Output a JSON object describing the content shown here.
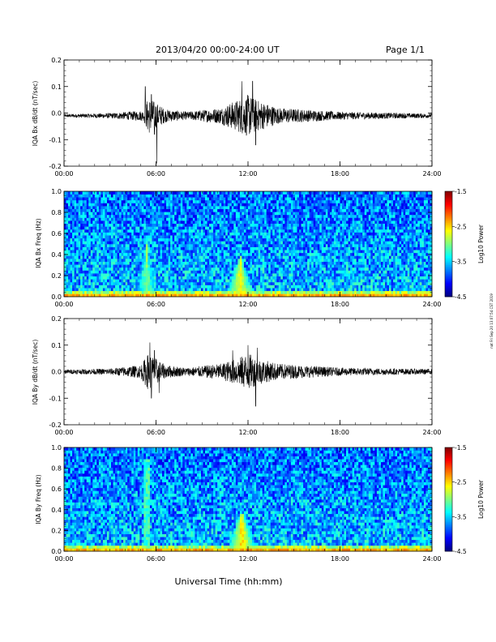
{
  "header": {
    "date_range": "2013/04/20  00:00-24:00 UT",
    "page": "Page 1/1"
  },
  "side_note": "nat Fri Sep 20 13:07:54 CST 2019",
  "x_axis_title": "Universal Time (hh:mm)",
  "x_ticks": [
    "00:00",
    "06:00",
    "12:00",
    "18:00",
    "24:00"
  ],
  "chart_data": [
    {
      "type": "line",
      "ylabel": "IQA Bx dB/dt (nT/sec)",
      "x_range_hours": [
        0,
        24
      ],
      "ylim": [
        -0.2,
        0.2
      ],
      "y_ticks": [
        "0.2",
        "0.1",
        "0.0",
        "-0.1",
        "-0.2"
      ],
      "baseline": -0.01,
      "noise_envelope": [
        {
          "t": 0,
          "amp": 0.006
        },
        {
          "t": 3,
          "amp": 0.01
        },
        {
          "t": 5.2,
          "amp": 0.02
        },
        {
          "t": 5.5,
          "amp": 0.07
        },
        {
          "t": 6.0,
          "amp": 0.05
        },
        {
          "t": 6.6,
          "amp": 0.025
        },
        {
          "t": 8,
          "amp": 0.015
        },
        {
          "t": 10.2,
          "amp": 0.03
        },
        {
          "t": 11.3,
          "amp": 0.06
        },
        {
          "t": 12.0,
          "amp": 0.08
        },
        {
          "t": 12.6,
          "amp": 0.06
        },
        {
          "t": 14,
          "amp": 0.03
        },
        {
          "t": 18,
          "amp": 0.015
        },
        {
          "t": 24,
          "amp": 0.008
        }
      ],
      "peaks": [
        {
          "t": 5.3,
          "value": 0.1
        },
        {
          "t": 5.7,
          "value": 0.07
        },
        {
          "t": 5.9,
          "value": -0.08
        },
        {
          "t": 6.05,
          "value": -0.19
        },
        {
          "t": 11.6,
          "value": 0.12
        },
        {
          "t": 12.3,
          "value": 0.12
        },
        {
          "t": 12.5,
          "value": -0.12
        }
      ]
    },
    {
      "type": "heatmap",
      "ylabel": "IQA Bx Freq (Hz)",
      "x_range_hours": [
        0,
        24
      ],
      "ylim": [
        0.0,
        1.0
      ],
      "y_ticks": [
        "1.0",
        "0.8",
        "0.6",
        "0.4",
        "0.2",
        "0.0"
      ],
      "colorbar": {
        "label": "Log10 Power",
        "ticks": [
          "-1.5",
          "-2.5",
          "-3.5",
          "-4.5"
        ],
        "range": [
          -4.5,
          -1.5
        ]
      },
      "features": [
        {
          "t": 5.4,
          "freq_max": 0.5,
          "level": -3.0
        },
        {
          "t": 11.5,
          "freq_max": 0.4,
          "level": -2.6
        }
      ]
    },
    {
      "type": "line",
      "ylabel": "IQA By dB/dt (nT/sec)",
      "x_range_hours": [
        0,
        24
      ],
      "ylim": [
        -0.2,
        0.2
      ],
      "y_ticks": [
        "0.2",
        "0.1",
        "0.0",
        "-0.1",
        "-0.2"
      ],
      "baseline": 0.0,
      "noise_envelope": [
        {
          "t": 0,
          "amp": 0.008
        },
        {
          "t": 3,
          "amp": 0.012
        },
        {
          "t": 5.0,
          "amp": 0.025
        },
        {
          "t": 5.5,
          "amp": 0.07
        },
        {
          "t": 6.0,
          "amp": 0.05
        },
        {
          "t": 6.6,
          "amp": 0.025
        },
        {
          "t": 8,
          "amp": 0.015
        },
        {
          "t": 10.2,
          "amp": 0.03
        },
        {
          "t": 11.3,
          "amp": 0.05
        },
        {
          "t": 12.0,
          "amp": 0.07
        },
        {
          "t": 12.6,
          "amp": 0.05
        },
        {
          "t": 14,
          "amp": 0.03
        },
        {
          "t": 18,
          "amp": 0.015
        },
        {
          "t": 24,
          "amp": 0.01
        }
      ],
      "peaks": [
        {
          "t": 5.6,
          "value": 0.11
        },
        {
          "t": 5.9,
          "value": 0.08
        },
        {
          "t": 5.7,
          "value": -0.1
        },
        {
          "t": 6.2,
          "value": -0.08
        },
        {
          "t": 11.0,
          "value": 0.08
        },
        {
          "t": 12.0,
          "value": 0.1
        },
        {
          "t": 12.6,
          "value": 0.09
        },
        {
          "t": 12.5,
          "value": -0.13
        }
      ]
    },
    {
      "type": "heatmap",
      "ylabel": "IQA By Freq (Hz)",
      "x_range_hours": [
        0,
        24
      ],
      "ylim": [
        0.0,
        1.0
      ],
      "y_ticks": [
        "1.0",
        "0.8",
        "0.6",
        "0.4",
        "0.2",
        "0.0"
      ],
      "colorbar": {
        "label": "Log10 Power",
        "ticks": [
          "-1.5",
          "-2.5",
          "-3.5",
          "-4.5"
        ],
        "range": [
          -4.5,
          -1.5
        ]
      },
      "features": [
        {
          "t": 5.4,
          "freq_max": 0.9,
          "level": -3.0
        },
        {
          "t": 11.6,
          "freq_max": 0.4,
          "level": -2.5
        }
      ]
    }
  ]
}
